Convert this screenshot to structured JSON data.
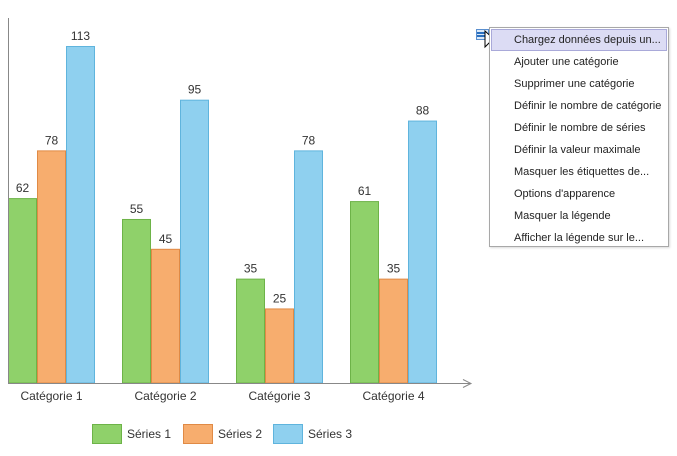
{
  "chart_data": {
    "type": "bar",
    "categories": [
      "Catégorie 1",
      "Catégorie 2",
      "Catégorie 3",
      "Catégorie 4"
    ],
    "series": [
      {
        "name": "Séries 1",
        "values": [
          62,
          55,
          35,
          61
        ],
        "color": "#8fd16a",
        "stroke": "#6db348"
      },
      {
        "name": "Séries 2",
        "values": [
          78,
          45,
          25,
          35
        ],
        "color": "#f7ad6e",
        "stroke": "#e08a45"
      },
      {
        "name": "Séries 3",
        "values": [
          113,
          95,
          78,
          88
        ],
        "color": "#8fd0ef",
        "stroke": "#5fb4dd"
      }
    ],
    "title": "",
    "xlabel": "",
    "ylabel": "",
    "ylim": [
      0,
      113
    ],
    "legend_position": "bottom",
    "grid": false,
    "axis_color": "#888888"
  },
  "context_menu": {
    "items": [
      {
        "label": "Chargez données depuis un...",
        "highlighted": true
      },
      {
        "label": "Ajouter une catégorie"
      },
      {
        "label": "Supprimer une catégorie"
      },
      {
        "label": "Définir le nombre de catégorie"
      },
      {
        "label": "Définir le nombre de séries"
      },
      {
        "label": "Définir la valeur maximale"
      },
      {
        "label": "Masquer les étiquettes de..."
      },
      {
        "label": "Options d'apparence"
      },
      {
        "label": "Masquer la légende"
      },
      {
        "label": "Afficher la légende sur le..."
      }
    ]
  },
  "icons": {
    "menu_button": "chart-menu-icon",
    "cursor": "mouse-pointer-icon"
  }
}
